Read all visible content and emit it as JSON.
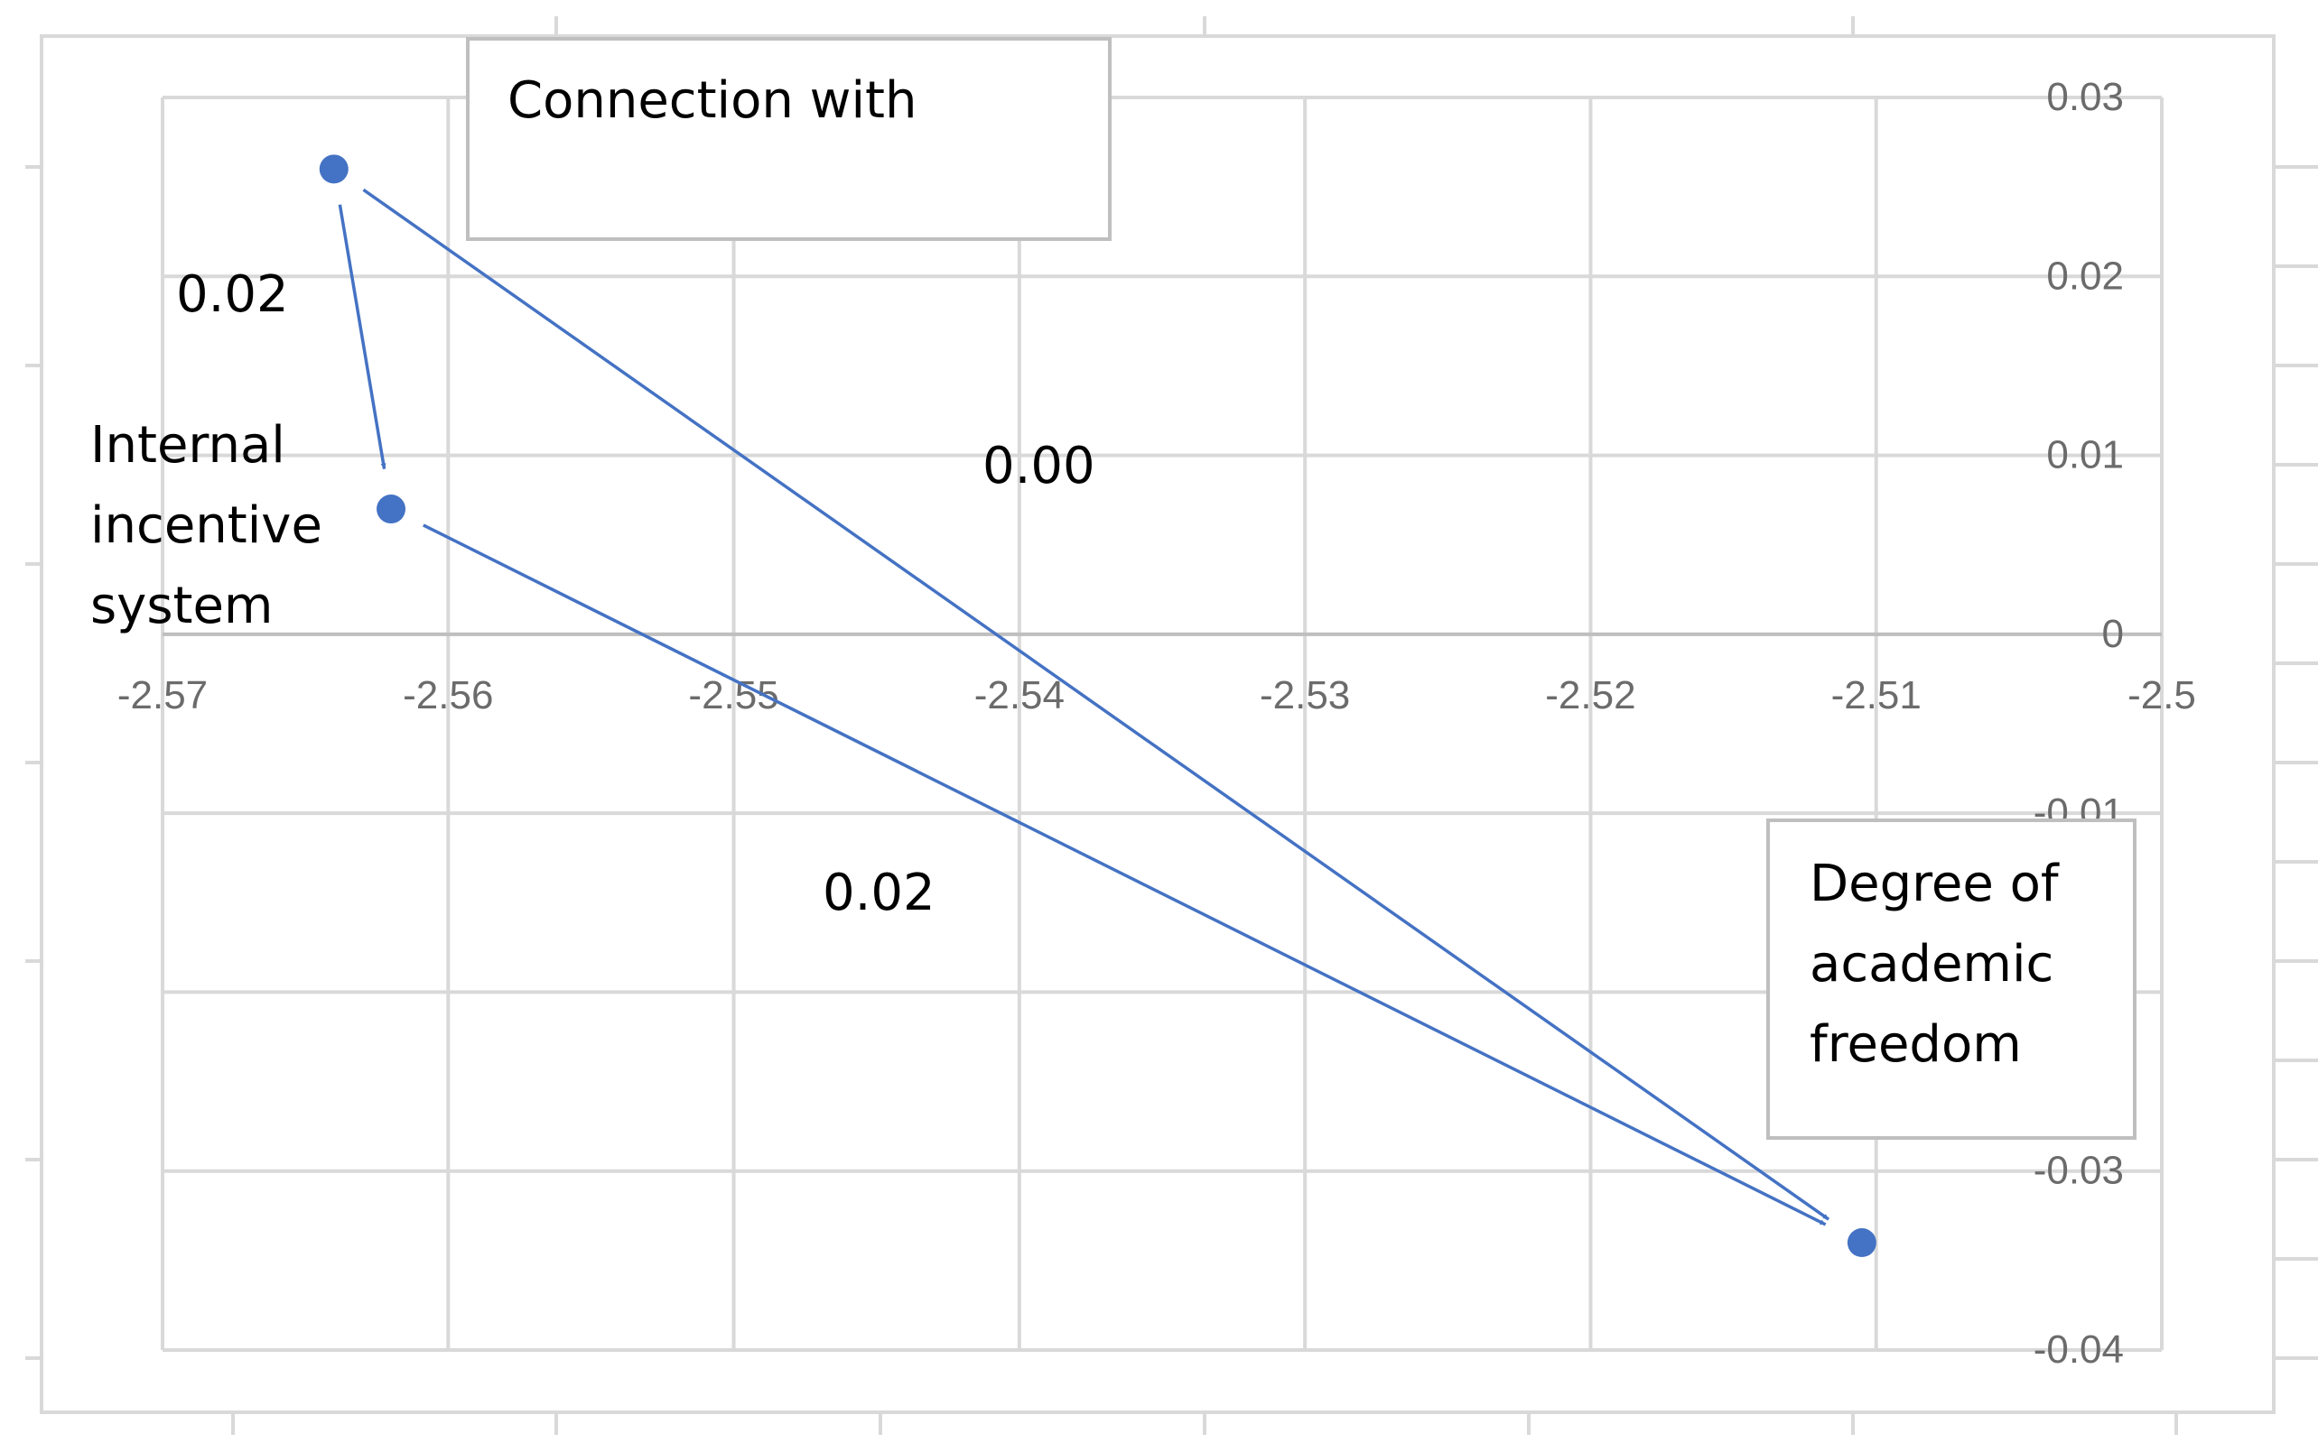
{
  "chart_data": {
    "type": "scatter",
    "title": "",
    "xlabel": "",
    "ylabel": "",
    "xlim": [
      -2.57,
      -2.5
    ],
    "ylim": [
      -0.04,
      0.03
    ],
    "x_ticks": [
      -2.57,
      -2.56,
      -2.55,
      -2.54,
      -2.53,
      -2.52,
      -2.51,
      -2.5
    ],
    "x_tick_labels": [
      "-2.57",
      "-2.56",
      "-2.55",
      "-2.54",
      "-2.53",
      "-2.52",
      "-2.51",
      "-2.5"
    ],
    "y_ticks": [
      0.03,
      0.02,
      0.01,
      0,
      -0.01,
      -0.03,
      -0.04
    ],
    "y_tick_labels": [
      "0.03",
      "0.02",
      "0.01",
      "0",
      "-0.01",
      "-0.03",
      "-0.04"
    ],
    "grid": true,
    "points": [
      {
        "label": "Connection with",
        "x": -2.564,
        "y": 0.026
      },
      {
        "label": "Internal incentive system",
        "x": -2.562,
        "y": 0.007
      },
      {
        "label": "Degree of academic freedom",
        "x": -2.5105,
        "y": -0.034
      }
    ],
    "edges": [
      {
        "from": 0,
        "to": 1,
        "label": "0.02"
      },
      {
        "from": 0,
        "to": 2,
        "label": "0.00"
      },
      {
        "from": 1,
        "to": 2,
        "label": "0.02"
      }
    ],
    "text_boxes": [
      {
        "lines": [
          "Connection with"
        ]
      },
      {
        "lines": [
          "Degree of",
          "academic",
          "freedom"
        ]
      }
    ],
    "plain_labels": [
      {
        "lines": [
          "Internal",
          "incentive",
          "system"
        ]
      }
    ],
    "colors": {
      "series": "#4472C4",
      "grid": "#d9d9d9",
      "axis": "#bfbfbf",
      "tick_text": "#6b6b6b",
      "label_text": "#000000"
    }
  }
}
